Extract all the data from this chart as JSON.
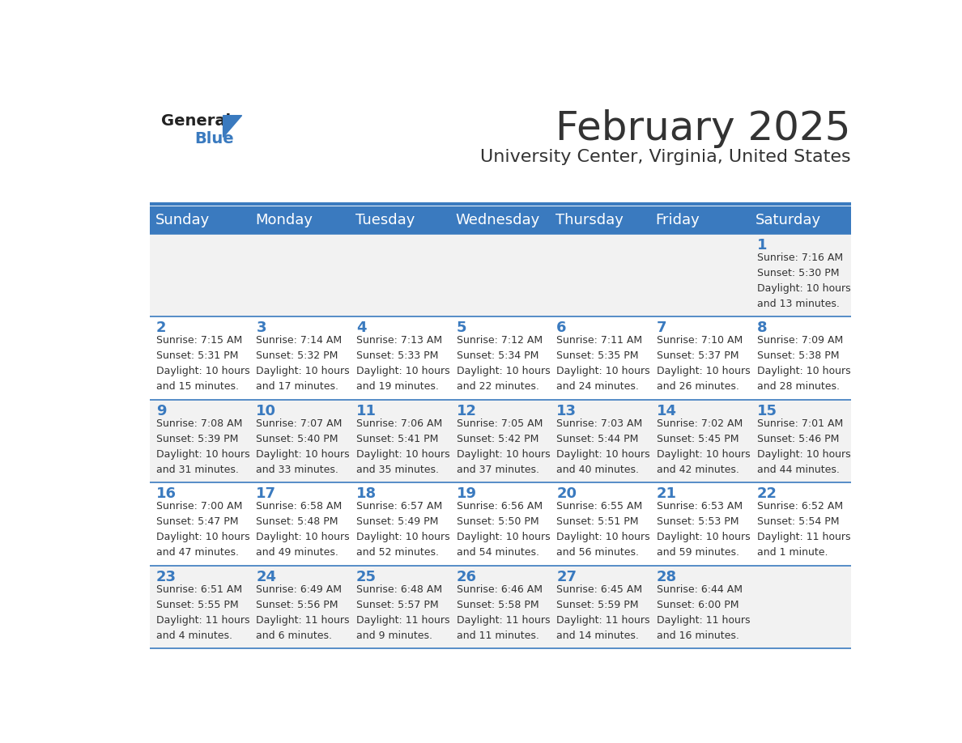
{
  "title": "February 2025",
  "subtitle": "University Center, Virginia, United States",
  "header_color": "#3a7abf",
  "header_text_color": "#ffffff",
  "cell_bg_odd": "#f2f2f2",
  "cell_bg_even": "#ffffff",
  "day_number_color": "#3a7abf",
  "text_color": "#333333",
  "line_color": "#3a7abf",
  "days_of_week": [
    "Sunday",
    "Monday",
    "Tuesday",
    "Wednesday",
    "Thursday",
    "Friday",
    "Saturday"
  ],
  "weeks": [
    [
      {
        "day": null,
        "info": null
      },
      {
        "day": null,
        "info": null
      },
      {
        "day": null,
        "info": null
      },
      {
        "day": null,
        "info": null
      },
      {
        "day": null,
        "info": null
      },
      {
        "day": null,
        "info": null
      },
      {
        "day": 1,
        "info": "Sunrise: 7:16 AM\nSunset: 5:30 PM\nDaylight: 10 hours\nand 13 minutes."
      }
    ],
    [
      {
        "day": 2,
        "info": "Sunrise: 7:15 AM\nSunset: 5:31 PM\nDaylight: 10 hours\nand 15 minutes."
      },
      {
        "day": 3,
        "info": "Sunrise: 7:14 AM\nSunset: 5:32 PM\nDaylight: 10 hours\nand 17 minutes."
      },
      {
        "day": 4,
        "info": "Sunrise: 7:13 AM\nSunset: 5:33 PM\nDaylight: 10 hours\nand 19 minutes."
      },
      {
        "day": 5,
        "info": "Sunrise: 7:12 AM\nSunset: 5:34 PM\nDaylight: 10 hours\nand 22 minutes."
      },
      {
        "day": 6,
        "info": "Sunrise: 7:11 AM\nSunset: 5:35 PM\nDaylight: 10 hours\nand 24 minutes."
      },
      {
        "day": 7,
        "info": "Sunrise: 7:10 AM\nSunset: 5:37 PM\nDaylight: 10 hours\nand 26 minutes."
      },
      {
        "day": 8,
        "info": "Sunrise: 7:09 AM\nSunset: 5:38 PM\nDaylight: 10 hours\nand 28 minutes."
      }
    ],
    [
      {
        "day": 9,
        "info": "Sunrise: 7:08 AM\nSunset: 5:39 PM\nDaylight: 10 hours\nand 31 minutes."
      },
      {
        "day": 10,
        "info": "Sunrise: 7:07 AM\nSunset: 5:40 PM\nDaylight: 10 hours\nand 33 minutes."
      },
      {
        "day": 11,
        "info": "Sunrise: 7:06 AM\nSunset: 5:41 PM\nDaylight: 10 hours\nand 35 minutes."
      },
      {
        "day": 12,
        "info": "Sunrise: 7:05 AM\nSunset: 5:42 PM\nDaylight: 10 hours\nand 37 minutes."
      },
      {
        "day": 13,
        "info": "Sunrise: 7:03 AM\nSunset: 5:44 PM\nDaylight: 10 hours\nand 40 minutes."
      },
      {
        "day": 14,
        "info": "Sunrise: 7:02 AM\nSunset: 5:45 PM\nDaylight: 10 hours\nand 42 minutes."
      },
      {
        "day": 15,
        "info": "Sunrise: 7:01 AM\nSunset: 5:46 PM\nDaylight: 10 hours\nand 44 minutes."
      }
    ],
    [
      {
        "day": 16,
        "info": "Sunrise: 7:00 AM\nSunset: 5:47 PM\nDaylight: 10 hours\nand 47 minutes."
      },
      {
        "day": 17,
        "info": "Sunrise: 6:58 AM\nSunset: 5:48 PM\nDaylight: 10 hours\nand 49 minutes."
      },
      {
        "day": 18,
        "info": "Sunrise: 6:57 AM\nSunset: 5:49 PM\nDaylight: 10 hours\nand 52 minutes."
      },
      {
        "day": 19,
        "info": "Sunrise: 6:56 AM\nSunset: 5:50 PM\nDaylight: 10 hours\nand 54 minutes."
      },
      {
        "day": 20,
        "info": "Sunrise: 6:55 AM\nSunset: 5:51 PM\nDaylight: 10 hours\nand 56 minutes."
      },
      {
        "day": 21,
        "info": "Sunrise: 6:53 AM\nSunset: 5:53 PM\nDaylight: 10 hours\nand 59 minutes."
      },
      {
        "day": 22,
        "info": "Sunrise: 6:52 AM\nSunset: 5:54 PM\nDaylight: 11 hours\nand 1 minute."
      }
    ],
    [
      {
        "day": 23,
        "info": "Sunrise: 6:51 AM\nSunset: 5:55 PM\nDaylight: 11 hours\nand 4 minutes."
      },
      {
        "day": 24,
        "info": "Sunrise: 6:49 AM\nSunset: 5:56 PM\nDaylight: 11 hours\nand 6 minutes."
      },
      {
        "day": 25,
        "info": "Sunrise: 6:48 AM\nSunset: 5:57 PM\nDaylight: 11 hours\nand 9 minutes."
      },
      {
        "day": 26,
        "info": "Sunrise: 6:46 AM\nSunset: 5:58 PM\nDaylight: 11 hours\nand 11 minutes."
      },
      {
        "day": 27,
        "info": "Sunrise: 6:45 AM\nSunset: 5:59 PM\nDaylight: 11 hours\nand 14 minutes."
      },
      {
        "day": 28,
        "info": "Sunrise: 6:44 AM\nSunset: 6:00 PM\nDaylight: 11 hours\nand 16 minutes."
      },
      {
        "day": null,
        "info": null
      }
    ]
  ],
  "logo_color_general": "#222222",
  "logo_color_blue": "#3a7abf",
  "title_fontsize": 36,
  "subtitle_fontsize": 16,
  "header_fontsize": 13,
  "day_num_fontsize": 13,
  "info_fontsize": 9
}
